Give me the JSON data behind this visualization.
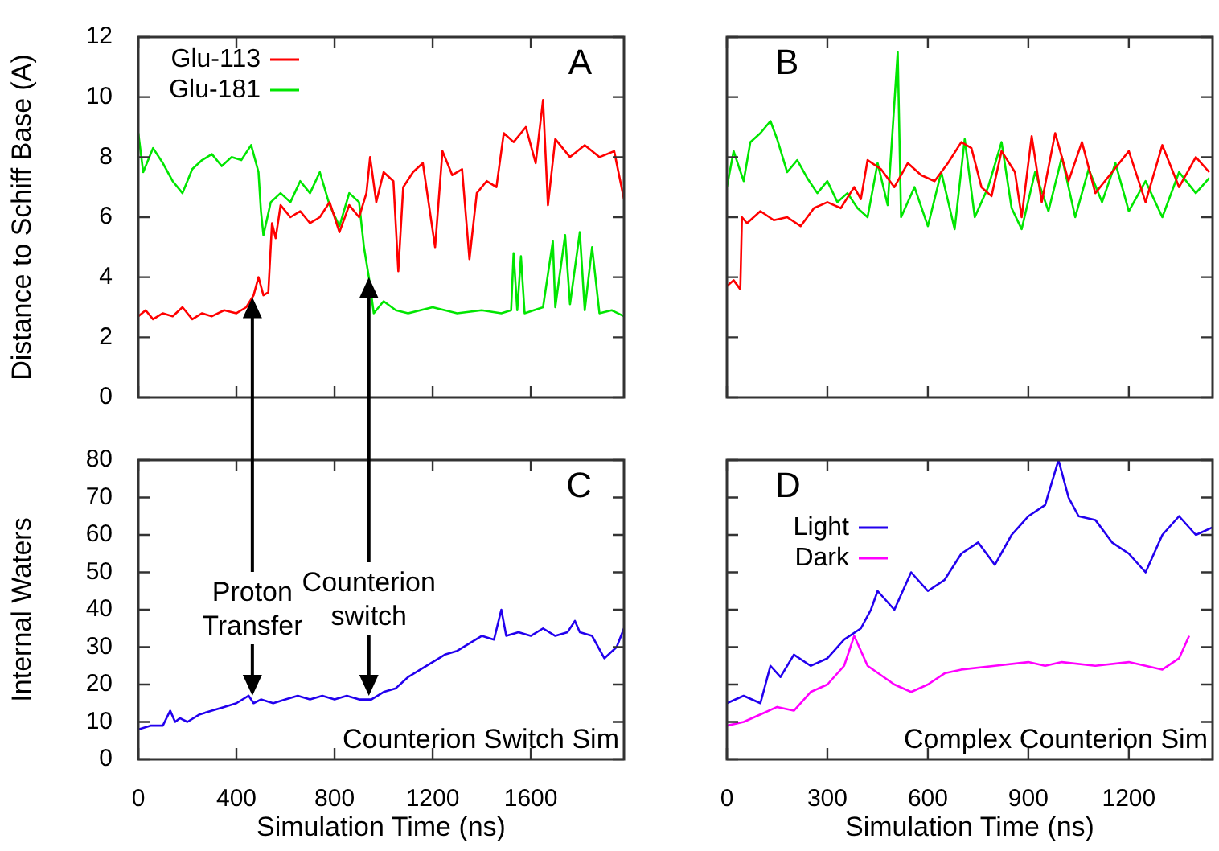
{
  "chart_data": [
    {
      "type": "line",
      "ylabel": "Distance to Schiff Base (A)",
      "xlim": [
        0,
        1980
      ],
      "xticks": [
        0,
        400,
        800,
        1200,
        1600
      ],
      "ylim": [
        0,
        12
      ],
      "yticks": [
        0,
        2,
        4,
        6,
        8,
        10,
        12
      ],
      "tick_labels": "y",
      "legend": "top left",
      "annotations": [
        "A"
      ],
      "series": [
        {
          "name": "Glu-113",
          "color": "#ff0000",
          "x": [
            0,
            30,
            60,
            100,
            140,
            180,
            220,
            260,
            300,
            350,
            400,
            440,
            470,
            490,
            510,
            530,
            545,
            560,
            580,
            620,
            660,
            700,
            740,
            780,
            820,
            860,
            900,
            930,
            945,
            970,
            1000,
            1040,
            1060,
            1080,
            1120,
            1160,
            1210,
            1240,
            1280,
            1320,
            1350,
            1380,
            1420,
            1460,
            1490,
            1530,
            1580,
            1620,
            1650,
            1670,
            1700,
            1760,
            1820,
            1880,
            1940,
            1980
          ],
          "values": [
            2.7,
            2.9,
            2.6,
            2.8,
            2.7,
            3.0,
            2.6,
            2.8,
            2.7,
            2.9,
            2.8,
            3.0,
            3.4,
            4.0,
            3.4,
            3.5,
            5.8,
            5.3,
            6.4,
            6.0,
            6.2,
            5.8,
            6.0,
            6.5,
            5.5,
            6.4,
            6.0,
            6.8,
            8.0,
            6.5,
            7.5,
            7.2,
            4.2,
            7.0,
            7.5,
            7.8,
            5.0,
            8.2,
            7.4,
            7.6,
            4.6,
            6.8,
            7.2,
            7.0,
            8.8,
            8.5,
            9.0,
            7.8,
            9.9,
            6.4,
            8.6,
            8.0,
            8.4,
            8.0,
            8.2,
            6.6
          ]
        },
        {
          "name": "Glu-181",
          "color": "#00e600",
          "x": [
            0,
            20,
            60,
            100,
            140,
            180,
            220,
            260,
            300,
            340,
            380,
            420,
            460,
            490,
            500,
            510,
            540,
            580,
            620,
            660,
            700,
            740,
            780,
            820,
            860,
            900,
            920,
            940,
            960,
            1000,
            1050,
            1100,
            1200,
            1300,
            1400,
            1480,
            1520,
            1530,
            1545,
            1560,
            1575,
            1650,
            1690,
            1700,
            1740,
            1760,
            1800,
            1820,
            1850,
            1880,
            1930,
            1980
          ],
          "values": [
            8.8,
            7.5,
            8.3,
            7.8,
            7.2,
            6.8,
            7.6,
            7.9,
            8.1,
            7.7,
            8.0,
            7.9,
            8.4,
            7.5,
            6.2,
            5.4,
            6.5,
            6.8,
            6.5,
            7.2,
            6.8,
            7.5,
            6.4,
            5.7,
            6.8,
            6.5,
            5.0,
            4.0,
            2.8,
            3.2,
            2.9,
            2.8,
            3.0,
            2.8,
            2.9,
            2.8,
            2.9,
            4.8,
            2.9,
            4.7,
            2.8,
            3.0,
            5.2,
            3.0,
            5.4,
            3.1,
            5.5,
            2.9,
            5.0,
            2.8,
            2.9,
            2.7
          ]
        }
      ]
    },
    {
      "type": "line",
      "xlim": [
        0,
        1450
      ],
      "xticks": [
        0,
        300,
        600,
        900,
        1200
      ],
      "ylim": [
        0,
        12
      ],
      "yticks": [
        0,
        2,
        4,
        6,
        8,
        10,
        12
      ],
      "tick_labels": false,
      "annotations": [
        "B"
      ],
      "series": [
        {
          "color": "#ff0000",
          "x": [
            0,
            20,
            40,
            45,
            60,
            100,
            140,
            180,
            220,
            260,
            300,
            340,
            380,
            400,
            420,
            460,
            500,
            540,
            580,
            620,
            660,
            700,
            730,
            760,
            790,
            820,
            860,
            880,
            910,
            940,
            980,
            1020,
            1060,
            1100,
            1150,
            1200,
            1250,
            1300,
            1350,
            1400,
            1440
          ],
          "values": [
            3.7,
            3.9,
            3.6,
            6.0,
            5.8,
            6.2,
            5.9,
            6.0,
            5.7,
            6.3,
            6.5,
            6.3,
            7.0,
            6.6,
            7.9,
            7.6,
            7.0,
            7.8,
            7.4,
            7.2,
            7.8,
            8.5,
            8.3,
            7.0,
            6.7,
            8.2,
            7.5,
            6.0,
            8.7,
            6.5,
            8.8,
            7.2,
            8.5,
            6.8,
            7.5,
            8.2,
            6.5,
            8.4,
            7.0,
            8.0,
            7.5
          ]
        },
        {
          "color": "#00e600",
          "x": [
            0,
            20,
            50,
            70,
            100,
            130,
            150,
            180,
            210,
            240,
            270,
            300,
            330,
            360,
            390,
            420,
            450,
            480,
            510,
            520,
            560,
            600,
            640,
            680,
            710,
            740,
            780,
            820,
            850,
            880,
            920,
            960,
            1000,
            1040,
            1080,
            1120,
            1160,
            1200,
            1250,
            1300,
            1350,
            1400,
            1440
          ],
          "values": [
            7.0,
            8.2,
            7.2,
            8.5,
            8.8,
            9.2,
            8.6,
            7.5,
            7.9,
            7.3,
            6.8,
            7.2,
            6.5,
            6.8,
            6.3,
            6.0,
            7.8,
            6.4,
            11.5,
            6.0,
            7.0,
            5.7,
            7.5,
            5.6,
            8.6,
            6.0,
            7.0,
            8.5,
            6.3,
            5.6,
            7.5,
            6.2,
            8.0,
            6.0,
            7.6,
            6.5,
            7.8,
            6.2,
            7.2,
            6.0,
            7.5,
            6.8,
            7.3
          ]
        }
      ]
    },
    {
      "type": "line",
      "xlabel": "Simulation Time (ns)",
      "ylabel": "Internal Waters",
      "xlim": [
        0,
        1980
      ],
      "xticks": [
        0,
        400,
        800,
        1200,
        1600
      ],
      "ylim": [
        0,
        80
      ],
      "yticks": [
        0,
        10,
        20,
        30,
        40,
        50,
        60,
        70,
        80
      ],
      "annotations": [
        "C",
        {
          "text": "Proton Transfer",
          "x": 465,
          "y": 17
        },
        {
          "text": "Counterion switch",
          "x": 940,
          "y": 17
        },
        "Counterion Switch Sim"
      ],
      "series": [
        {
          "color": "#2200ee",
          "x": [
            0,
            50,
            100,
            130,
            150,
            170,
            200,
            250,
            300,
            350,
            400,
            450,
            470,
            500,
            550,
            600,
            650,
            700,
            750,
            800,
            850,
            900,
            950,
            1000,
            1050,
            1100,
            1150,
            1200,
            1250,
            1300,
            1350,
            1400,
            1450,
            1480,
            1500,
            1550,
            1600,
            1650,
            1700,
            1750,
            1780,
            1800,
            1850,
            1900,
            1950,
            1980
          ],
          "values": [
            8,
            9,
            9,
            13,
            10,
            11,
            10,
            12,
            13,
            14,
            15,
            17,
            15,
            16,
            15,
            16,
            17,
            16,
            17,
            16,
            17,
            16,
            16,
            18,
            19,
            22,
            24,
            26,
            28,
            29,
            31,
            33,
            32,
            40,
            33,
            34,
            33,
            35,
            33,
            34,
            37,
            34,
            33,
            27,
            30,
            35
          ]
        }
      ]
    },
    {
      "type": "line",
      "xlabel": "Simulation Time (ns)",
      "xlim": [
        0,
        1450
      ],
      "xticks": [
        0,
        300,
        600,
        900,
        1200
      ],
      "ylim": [
        0,
        80
      ],
      "yticks": [
        0,
        10,
        20,
        30,
        40,
        50,
        60,
        70,
        80
      ],
      "tick_labels": "x",
      "legend": "top left",
      "annotations": [
        "D",
        "Complex Counterion Sim"
      ],
      "series": [
        {
          "name": "Light",
          "color": "#2200ee",
          "x": [
            0,
            50,
            100,
            130,
            160,
            200,
            250,
            300,
            350,
            400,
            430,
            450,
            500,
            550,
            600,
            650,
            700,
            750,
            800,
            850,
            900,
            950,
            990,
            1020,
            1050,
            1100,
            1150,
            1200,
            1250,
            1300,
            1350,
            1400,
            1450
          ],
          "values": [
            15,
            17,
            15,
            25,
            22,
            28,
            25,
            27,
            32,
            35,
            40,
            45,
            40,
            50,
            45,
            48,
            55,
            58,
            52,
            60,
            65,
            68,
            80,
            70,
            65,
            64,
            58,
            55,
            50,
            60,
            65,
            60,
            62
          ]
        },
        {
          "name": "Dark",
          "color": "#ff00ff",
          "x": [
            0,
            50,
            100,
            150,
            200,
            250,
            300,
            350,
            380,
            420,
            500,
            550,
            600,
            650,
            700,
            800,
            900,
            950,
            1000,
            1100,
            1200,
            1300,
            1350,
            1380
          ],
          "values": [
            9,
            10,
            12,
            14,
            13,
            18,
            20,
            25,
            33,
            25,
            20,
            18,
            20,
            23,
            24,
            25,
            26,
            25,
            26,
            25,
            26,
            24,
            27,
            33
          ]
        }
      ]
    }
  ]
}
